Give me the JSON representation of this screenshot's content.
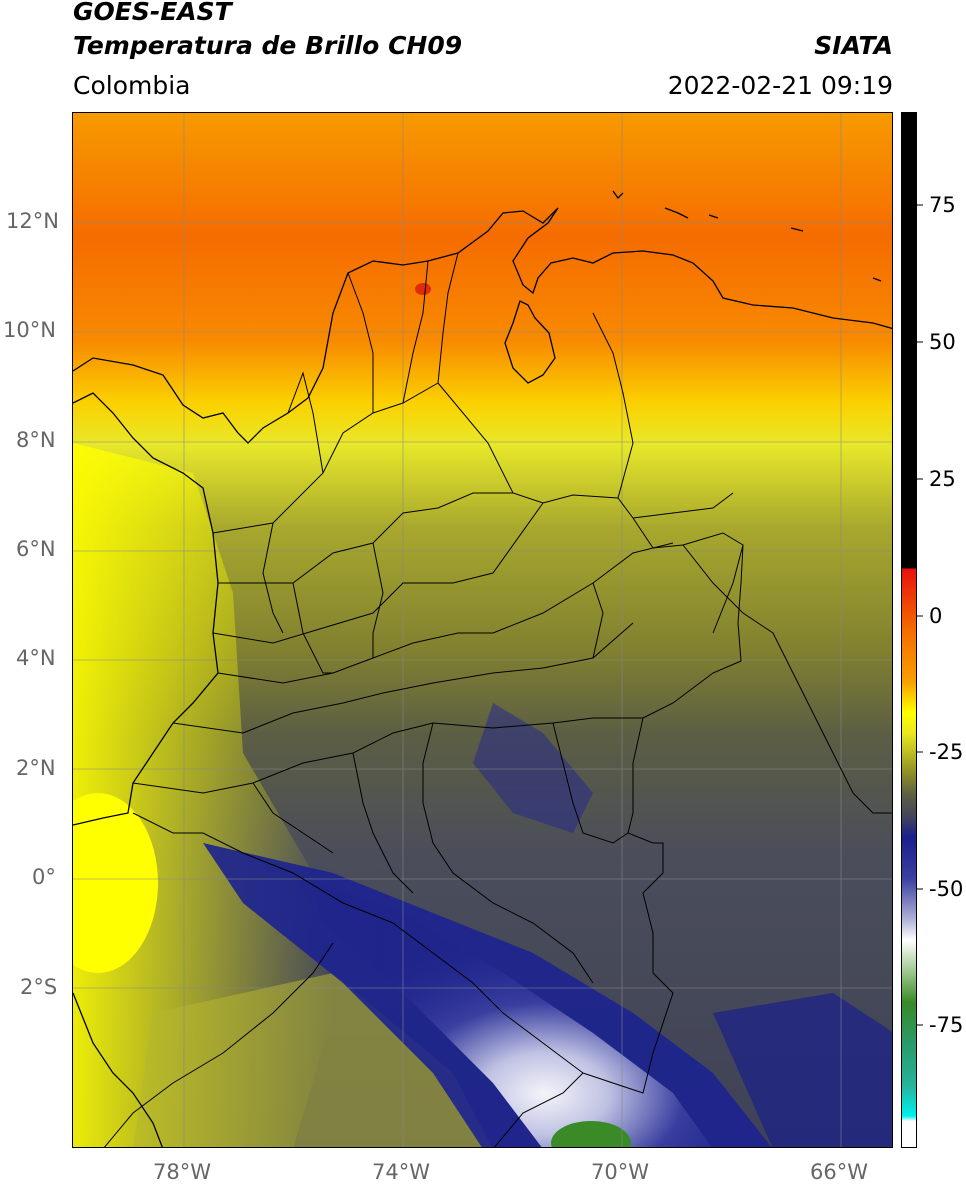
{
  "header": {
    "title_line1": "GOES-EAST",
    "title_line2": "Temperatura de Brillo CH09",
    "agency": "SIATA",
    "region": "Colombia",
    "datetime": "2022-02-21 09:19"
  },
  "map": {
    "lon_ticks": [
      "78°W",
      "74°W",
      "70°W",
      "66°W"
    ],
    "lat_ticks": [
      "12°N",
      "10°N",
      "8°N",
      "6°N",
      "4°N",
      "2°N",
      "0°",
      "2°S"
    ]
  },
  "colorbar": {
    "labels": [
      "75",
      "50",
      "25",
      "0",
      "-25",
      "-50",
      "-75"
    ],
    "colors": {
      "hot": "#000000",
      "red": "#e8120c",
      "orange": "#f7a000",
      "yellow": "#ffff00",
      "olive": "#8a8a2a",
      "gray": "#44475a",
      "navy": "#1a1f8a",
      "white": "#ffffff",
      "green": "#3a8a28",
      "teal": "#28b39a",
      "cyan": "#00f0f0"
    }
  }
}
